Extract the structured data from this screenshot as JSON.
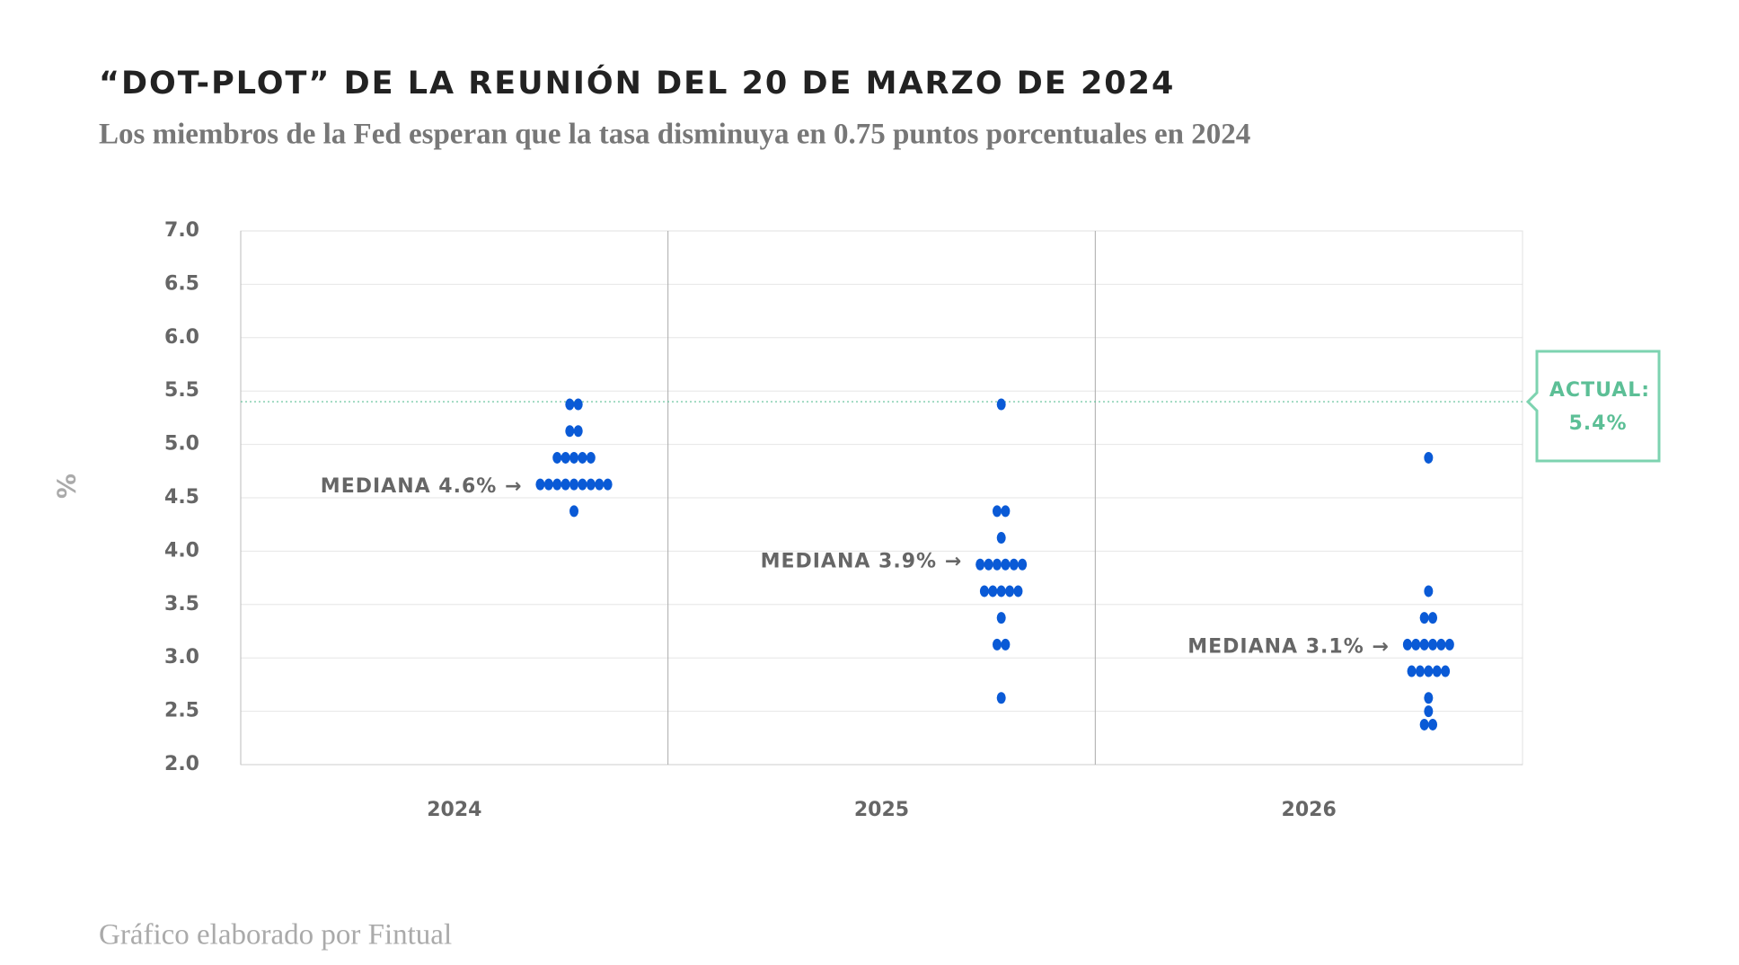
{
  "chart_data": {
    "type": "dot-plot",
    "title": "“DOT-PLOT” DE LA REUNIÓN DEL 20 DE MARZO DE 2024",
    "subtitle": "Los miembros de la Fed esperan que la tasa disminuya en 0.75 puntos porcentuales en 2024",
    "y_label": "%",
    "footer": "Gráfico elaborado por Fintual",
    "categories": [
      "2024",
      "2025",
      "2026"
    ],
    "color": "#0a5ad6",
    "values": [
      [
        5.375,
        5.375,
        5.125,
        5.125,
        4.875,
        4.875,
        4.875,
        4.875,
        4.875,
        4.625,
        4.625,
        4.625,
        4.625,
        4.625,
        4.625,
        4.625,
        4.625,
        4.625,
        4.375
      ],
      [
        5.375,
        4.375,
        4.375,
        4.125,
        3.875,
        3.875,
        3.875,
        3.875,
        3.875,
        3.875,
        3.625,
        3.625,
        3.625,
        3.625,
        3.625,
        3.375,
        3.125,
        3.125,
        2.625
      ],
      [
        4.875,
        3.625,
        3.375,
        3.375,
        3.125,
        3.125,
        3.125,
        3.125,
        3.125,
        3.125,
        2.875,
        2.875,
        2.875,
        2.875,
        2.875,
        2.625,
        2.5,
        2.375,
        2.375
      ]
    ],
    "annotations": [
      {
        "label": "MEDIANA 4.6% →",
        "value": 4.6,
        "category": 0
      },
      {
        "label": "MEDIANA 3.9% →",
        "value": 3.9,
        "category": 1
      },
      {
        "label": "MEDIANA 3.1% →",
        "value": 3.1,
        "category": 2
      }
    ],
    "reference_line": {
      "value": 5.4,
      "label": "ACTUAL:",
      "value_label": "5.4%",
      "color": "#5cbf96"
    },
    "ylim": [
      2.0,
      7.0
    ],
    "yticks": [
      {
        "value": 2,
        "label": "2.0"
      },
      2.5,
      {
        "value": 3,
        "label": "3.0"
      },
      3.5,
      {
        "value": 4,
        "label": "4.0"
      },
      4.5,
      {
        "value": 5,
        "label": "5.0"
      },
      5.5,
      {
        "value": 6,
        "label": "6.0"
      },
      6.5,
      {
        "value": 7,
        "label": "7.0"
      }
    ],
    "grid": true
  }
}
